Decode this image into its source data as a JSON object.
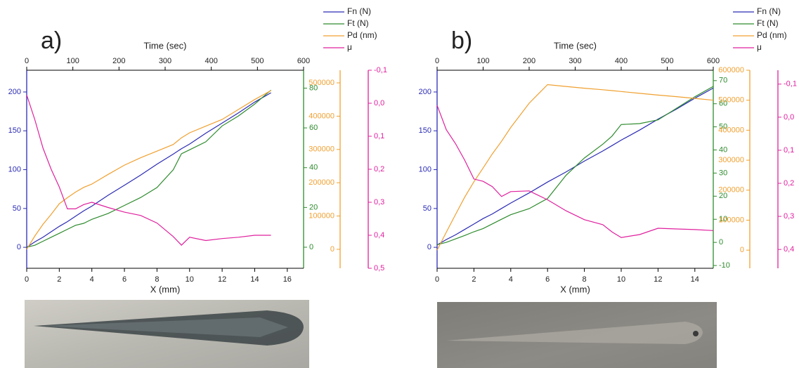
{
  "chart_data": [
    {
      "type": "line",
      "panel_label": "a)",
      "x_label": "X (mm)",
      "x2_label": "Time (sec)",
      "legend": "top-right",
      "xlim": [
        0,
        17
      ],
      "xticks": [
        0,
        2,
        4,
        6,
        8,
        10,
        12,
        14,
        16
      ],
      "x2lim": [
        0,
        600
      ],
      "x2ticks": [
        0,
        100,
        200,
        300,
        400,
        500,
        600
      ],
      "ylim": [
        -27,
        228
      ],
      "yticks": [
        0,
        50,
        100,
        150,
        200
      ],
      "y2lim": [
        -10.6,
        89
      ],
      "y2ticks": [
        0,
        20,
        40,
        60,
        80
      ],
      "y3lim": [
        -57000,
        538000
      ],
      "y3ticks": [
        0,
        100000,
        200000,
        300000,
        400000,
        500000
      ],
      "y4lim": [
        0.5,
        -0.1
      ],
      "y4ticks": [
        {
          "value": -0.1,
          "label": "-0,1"
        },
        {
          "value": 0,
          "label": "0,0"
        },
        {
          "value": 0.1,
          "label": "0,1"
        },
        {
          "value": 0.2,
          "label": "0,2"
        },
        {
          "value": 0.3,
          "label": "0,3"
        },
        {
          "value": 0.4,
          "label": "0,4"
        },
        {
          "value": 0.5,
          "label": "0,5"
        }
      ],
      "x": [
        0,
        0.5,
        1,
        1.5,
        2,
        2.5,
        3,
        3.5,
        4,
        5,
        6,
        7,
        8,
        9,
        9.5,
        10,
        11,
        12,
        13,
        14,
        15
      ],
      "series": [
        {
          "name": "Fn (N)",
          "color": "#2b2bb5",
          "axis": "y",
          "values": [
            0,
            7,
            13,
            20,
            27,
            33,
            40,
            47,
            53,
            67,
            80,
            93,
            107,
            120,
            127,
            133,
            147,
            160,
            173,
            187,
            199
          ]
        },
        {
          "name": "Ft (N)",
          "color": "#2e8b2e",
          "axis": "y2",
          "values": [
            0,
            1,
            3,
            5,
            7,
            9,
            11,
            12,
            14,
            17,
            21,
            25,
            30,
            39,
            47,
            49,
            53,
            61,
            66,
            72,
            79
          ]
        },
        {
          "name": "Pd (nm)",
          "color": "#f0a030",
          "axis": "y3",
          "values": [
            0,
            40000,
            75000,
            105000,
            137000,
            155000,
            172000,
            186000,
            196000,
            225000,
            253000,
            275000,
            295000,
            315000,
            335000,
            350000,
            370000,
            390000,
            420000,
            450000,
            477000
          ]
        },
        {
          "name": "μ",
          "color": "#e0209e",
          "axis": "y4",
          "values": [
            -0.025,
            0.05,
            0.136,
            0.2,
            0.254,
            0.32,
            0.32,
            0.307,
            0.3,
            0.316,
            0.33,
            0.34,
            0.363,
            0.404,
            0.43,
            0.406,
            0.416,
            0.41,
            0.406,
            0.4,
            0.4
          ]
        }
      ]
    },
    {
      "type": "line",
      "panel_label": "b)",
      "x_label": "X (mm)",
      "x2_label": "Time (sec)",
      "legend": "top-right",
      "xlim": [
        0,
        15
      ],
      "xticks": [
        0,
        2,
        4,
        6,
        8,
        10,
        12,
        14
      ],
      "x2lim": [
        0,
        600
      ],
      "x2ticks": [
        0,
        100,
        200,
        300,
        400,
        500,
        600
      ],
      "ylim": [
        -27,
        228
      ],
      "yticks": [
        0,
        50,
        100,
        150,
        200
      ],
      "y2lim": [
        -11.2,
        74.5
      ],
      "y2ticks": [
        -10,
        0,
        10,
        20,
        30,
        40,
        50,
        60,
        70
      ],
      "y3lim": [
        -60500,
        600000
      ],
      "y3ticks": [
        0,
        100000,
        200000,
        300000,
        400000,
        500000,
        600000
      ],
      "y4lim": [
        0.457,
        -0.142
      ],
      "y4ticks": [
        {
          "value": -0.1,
          "label": "-0,1"
        },
        {
          "value": 0,
          "label": "0,0"
        },
        {
          "value": 0.1,
          "label": "0,1"
        },
        {
          "value": 0.2,
          "label": "0,2"
        },
        {
          "value": 0.3,
          "label": "0,3"
        },
        {
          "value": 0.4,
          "label": "0,4"
        }
      ],
      "x": [
        0,
        0.5,
        1,
        1.5,
        2,
        2.5,
        3,
        3.5,
        4,
        5,
        6,
        7,
        8,
        9,
        9.5,
        10,
        11,
        12,
        13,
        14,
        15
      ],
      "series": [
        {
          "name": "Fn (N)",
          "color": "#2b2bb5",
          "axis": "y",
          "values": [
            3,
            10,
            16,
            23,
            30,
            37,
            43,
            50,
            57,
            70,
            84,
            97,
            111,
            124,
            131,
            138,
            151,
            165,
            178,
            192,
            205
          ]
        },
        {
          "name": "Ft (N)",
          "color": "#2e8b2e",
          "axis": "y2",
          "values": [
            -1,
            0,
            1.5,
            3,
            4.6,
            6,
            8,
            10,
            12,
            14.6,
            19,
            29,
            36.5,
            42.5,
            46,
            51,
            51.4,
            53,
            58,
            63,
            67.5
          ]
        },
        {
          "name": "Pd (nm)",
          "color": "#f0a030",
          "axis": "y3",
          "values": [
            0,
            60000,
            118600,
            176700,
            228000,
            274000,
            321000,
            363000,
            409000,
            490000,
            552000,
            546000,
            540000,
            535000,
            532000,
            529000,
            523000,
            517000,
            512000,
            506000,
            500000
          ]
        },
        {
          "name": "μ",
          "color": "#e0209e",
          "axis": "y4",
          "values": [
            -0.036,
            0.038,
            0.08,
            0.13,
            0.187,
            0.194,
            0.21,
            0.24,
            0.225,
            0.223,
            0.25,
            0.283,
            0.31,
            0.325,
            0.347,
            0.364,
            0.355,
            0.336,
            0.338,
            0.34,
            0.343
          ]
        }
      ]
    }
  ]
}
